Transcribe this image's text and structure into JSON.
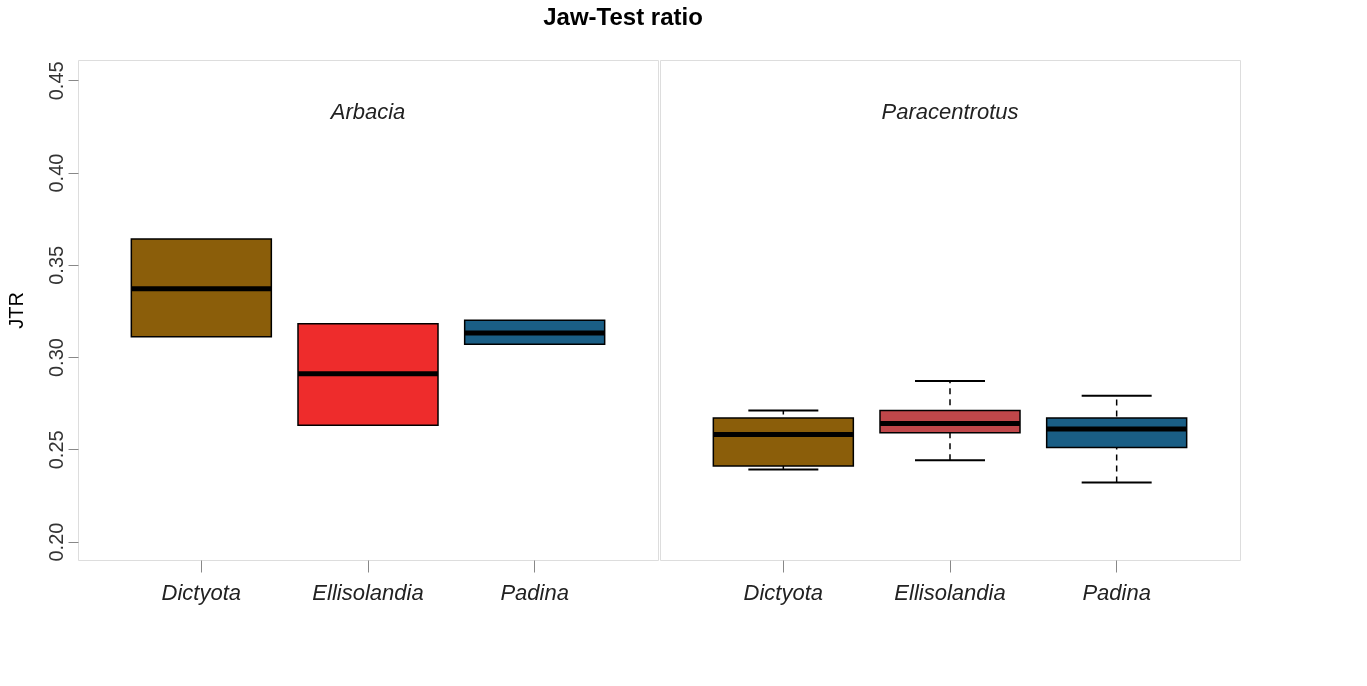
{
  "chart_data": [
    {
      "type": "box",
      "title": "Jaw-Test ratio",
      "ylabel": "JTR",
      "categories": [
        "Dictyota",
        "Ellisolandia",
        "Padina"
      ],
      "annotations": [
        "Arbacia"
      ],
      "ylim": [
        0.19,
        0.461
      ],
      "yticks": [
        {
          "value": 0.2,
          "label": "0.20"
        },
        0.25,
        {
          "value": 0.3,
          "label": "0.30"
        },
        0.35,
        {
          "value": 0.4,
          "label": "0.40"
        },
        0.45
      ],
      "grid": false,
      "colors": [
        "#8b5e0a",
        "#ee2c2c",
        "#1a5e85"
      ],
      "boxes": [
        {
          "low": 0.311,
          "q1": 0.311,
          "median": 0.337,
          "q3": 0.364,
          "high": 0.364
        },
        {
          "low": 0.263,
          "q1": 0.263,
          "median": 0.291,
          "q3": 0.318,
          "high": 0.318
        },
        {
          "low": 0.307,
          "q1": 0.307,
          "median": 0.313,
          "q3": 0.32,
          "high": 0.32
        }
      ]
    },
    {
      "type": "box",
      "categories": [
        "Dictyota",
        "Ellisolandia",
        "Padina"
      ],
      "annotations": [
        "Paracentrotus"
      ],
      "ylim": [
        0.19,
        0.461
      ],
      "tick_labels": "x",
      "grid": false,
      "colors": [
        "#8b5e0a",
        "#c0474a",
        "#1a5e85"
      ],
      "boxes": [
        {
          "low": 0.239,
          "q1": 0.241,
          "median": 0.258,
          "q3": 0.267,
          "high": 0.271
        },
        {
          "low": 0.244,
          "q1": 0.259,
          "median": 0.264,
          "q3": 0.271,
          "high": 0.287
        },
        {
          "low": 0.232,
          "q1": 0.251,
          "median": 0.261,
          "q3": 0.267,
          "high": 0.279
        }
      ]
    }
  ]
}
